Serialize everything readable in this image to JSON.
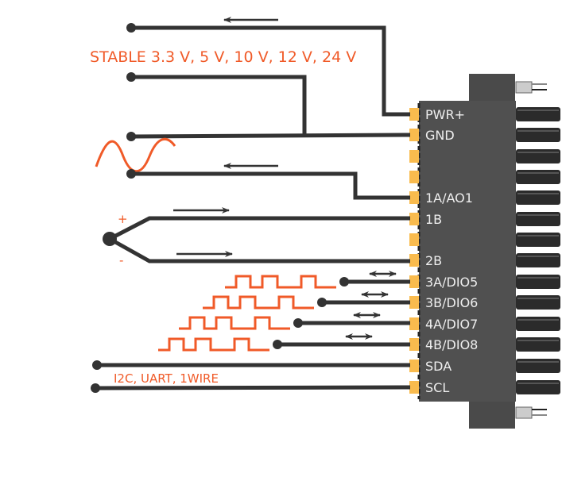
{
  "voltage_label": "STABLE 3.3 V, 5 V, 10 V, 12 V, 24 V",
  "bus_label": "I2C, UART, 1WIRE",
  "thermocouple": {
    "plus": "+",
    "minus": "-"
  },
  "pins": [
    "PWR+",
    "GND",
    "",
    "",
    "1A/AO1",
    "1B",
    "",
    "2B",
    "3A/DIO5",
    "3B/DIO6",
    "4A/DIO7",
    "4B/DIO8",
    "SDA",
    "SCL"
  ],
  "colors": {
    "accent": "#f05a28",
    "wire": "#333333",
    "connector": "#4a4a4a",
    "pin": "#f9bb4e"
  },
  "icons": [
    "arrow-left-icon",
    "arrow-right-icon",
    "double-arrow-icon",
    "sine-wave-icon",
    "square-wave-icon"
  ]
}
